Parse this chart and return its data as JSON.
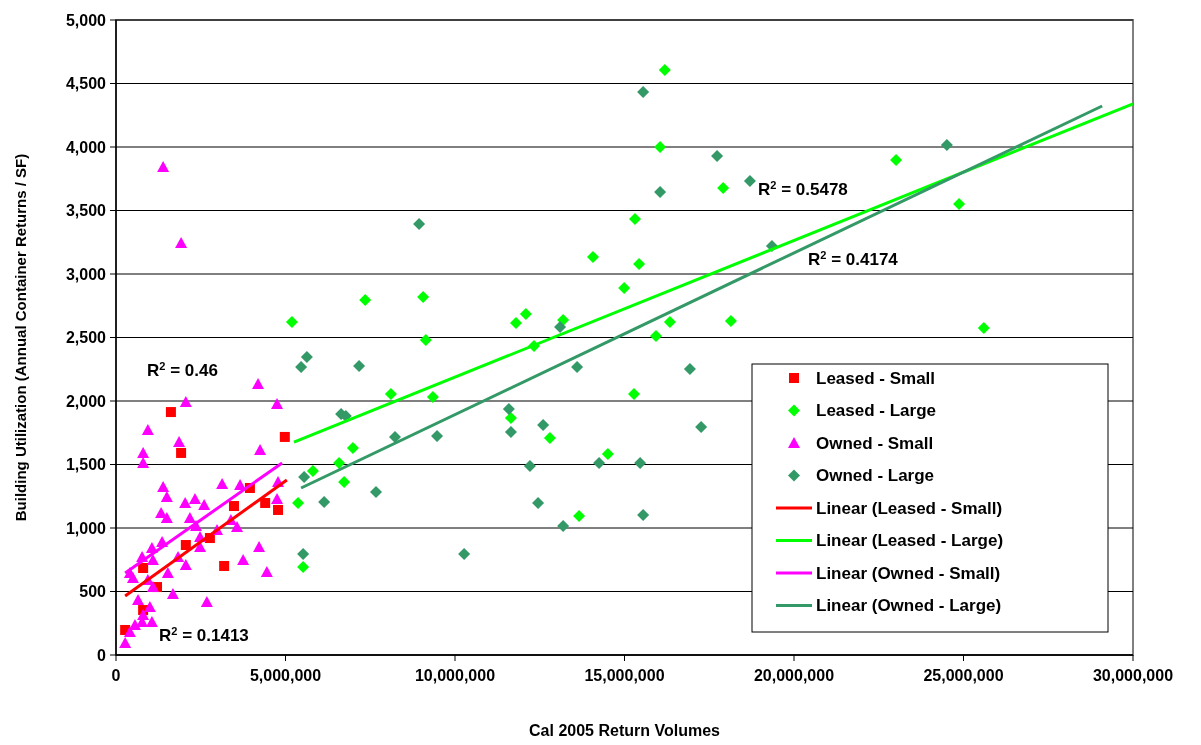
{
  "chart_data": {
    "type": "scatter",
    "xlabel": "Cal 2005 Return Volumes",
    "ylabel": "Building Utilization (Annual Container Returns / SF)",
    "xlim": [
      0,
      30000000
    ],
    "ylim": [
      0,
      5000
    ],
    "xticks": [
      {
        "value": 0,
        "label": "0"
      },
      {
        "value": 5000000,
        "label": "5,000,000"
      },
      {
        "value": 10000000,
        "label": "10,000,000"
      },
      {
        "value": 15000000,
        "label": "15,000,000"
      },
      {
        "value": 20000000,
        "label": "20,000,000"
      },
      {
        "value": 25000000,
        "label": "25,000,000"
      },
      {
        "value": 30000000,
        "label": "30,000,000"
      }
    ],
    "yticks": [
      {
        "value": 0,
        "label": "0"
      },
      {
        "value": 500,
        "label": "500"
      },
      {
        "value": 1000,
        "label": "1,000"
      },
      {
        "value": 1500,
        "label": "1,500"
      },
      {
        "value": 2000,
        "label": "2,000"
      },
      {
        "value": 2500,
        "label": "2,500"
      },
      {
        "value": 3000,
        "label": "3,000"
      },
      {
        "value": 3500,
        "label": "3,500"
      },
      {
        "value": 4000,
        "label": "4,000"
      },
      {
        "value": 4500,
        "label": "4,500"
      },
      {
        "value": 5000,
        "label": "5,000"
      }
    ],
    "grid": "y",
    "legend": "bottom right",
    "annotations": [
      "R$^{2}$ = 0.46",
      "R$^{2}$ = 0.1413",
      "R$^{2}$ = 0.5478",
      "R$^{2}$ = 0.4174"
    ],
    "series": [
      {
        "name": "Leased - Small",
        "marker": "square",
        "color": "#ff0000",
        "x": [
          270000,
          1620000,
          1920000,
          4980000,
          4400000,
          4780000,
          3950000,
          3480000,
          2770000,
          2060000,
          3190000,
          1210000,
          800000,
          800000
        ],
        "values": [
          197,
          1913,
          1591,
          1717,
          1197,
          1142,
          1315,
          1173,
          921,
          866,
          701,
          535,
          685,
          354
        ]
      },
      {
        "name": "Leased - Large",
        "marker": "diamond",
        "color": "#00ff00",
        "x": [
          5190000,
          7350000,
          9060000,
          9140000,
          8110000,
          9350000,
          6990000,
          6580000,
          5810000,
          6730000,
          5370000,
          5520000,
          11800000,
          12090000,
          13190000,
          12330000,
          14070000,
          14990000,
          11650000,
          12800000,
          14510000,
          13660000,
          16050000,
          17910000,
          15310000,
          15430000,
          16340000,
          15930000,
          15280000,
          18140000,
          23010000,
          24870000,
          25600000,
          16190000
        ],
        "values": [
          2622,
          2795,
          2819,
          2480,
          2055,
          2031,
          1630,
          1512,
          1449,
          1362,
          1197,
          693,
          2614,
          2685,
          2638,
          2433,
          3134,
          2890,
          1866,
          1709,
          1583,
          1094,
          4000,
          3677,
          3433,
          3079,
          2622,
          2512,
          2055,
          2630,
          3898,
          3551,
          2575,
          4606
        ]
      },
      {
        "name": "Owned - Small",
        "marker": "triangle",
        "color": "#ff00ff",
        "x": [
          1390000,
          1920000,
          4190000,
          2060000,
          4750000,
          940000,
          1860000,
          4250000,
          800000,
          800000,
          1390000,
          1500000,
          3130000,
          3660000,
          4780000,
          4750000,
          2040000,
          2330000,
          2600000,
          1330000,
          1500000,
          2180000,
          2360000,
          3390000,
          3570000,
          2980000,
          1360000,
          2480000,
          2480000,
          1830000,
          2060000,
          1060000,
          770000,
          1090000,
          1530000,
          4220000,
          3750000,
          4450000,
          410000,
          500000,
          1680000,
          2680000,
          650000,
          1000000,
          800000,
          1060000,
          770000,
          560000,
          410000,
          270000,
          940000,
          1090000
        ],
        "values": [
          3843,
          3244,
          2134,
          1992,
          1976,
          1772,
          1677,
          1614,
          1591,
          1512,
          1323,
          1244,
          1346,
          1339,
          1362,
          1228,
          1197,
          1228,
          1181,
          1118,
          1079,
          1079,
          1016,
          1063,
          1008,
          984,
          890,
          929,
          850,
          772,
          709,
          843,
          772,
          748,
          646,
          850,
          748,
          654,
          646,
          606,
          480,
          417,
          433,
          378,
          315,
          260,
          260,
          236,
          181,
          94,
          591,
          535
        ]
      },
      {
        "name": "Owned - Large",
        "marker": "diamond",
        "color": "#339966",
        "x": [
          5630000,
          5460000,
          7170000,
          6640000,
          6780000,
          8230000,
          9470000,
          11590000,
          11650000,
          12600000,
          13100000,
          13600000,
          5550000,
          6140000,
          7670000,
          12210000,
          12450000,
          13190000,
          14250000,
          5520000,
          10270000,
          15550000,
          17730000,
          16050000,
          18700000,
          19350000,
          16930000,
          17260000,
          15460000,
          15550000,
          24510000,
          8940000
        ],
        "values": [
          2346,
          2268,
          2276,
          1898,
          1882,
          1717,
          1724,
          1937,
          1756,
          1811,
          2583,
          2268,
          1402,
          1205,
          1283,
          1488,
          1197,
          1016,
          1512,
          795,
          795,
          4433,
          3929,
          3646,
          3732,
          3220,
          2252,
          1795,
          1512,
          1102,
          4016,
          3394
        ]
      },
      {
        "name": "Linear (Leased - Small)",
        "type": "line",
        "color": "#ff0000",
        "x": [
          270000,
          5040000
        ],
        "values": [
          465,
          1378
        ]
      },
      {
        "name": "Linear (Leased - Large)",
        "type": "line",
        "color": "#00ff00",
        "x": [
          5250000,
          30000000
        ],
        "values": [
          1677,
          4340
        ]
      },
      {
        "name": "Linear (Owned - Small)",
        "type": "line",
        "color": "#ff00ff",
        "x": [
          270000,
          4900000
        ],
        "values": [
          646,
          1512
        ]
      },
      {
        "name": "Linear (Owned - Large)",
        "type": "line",
        "color": "#339966",
        "x": [
          5460000,
          29090000
        ],
        "values": [
          1315,
          4323
        ]
      }
    ]
  }
}
